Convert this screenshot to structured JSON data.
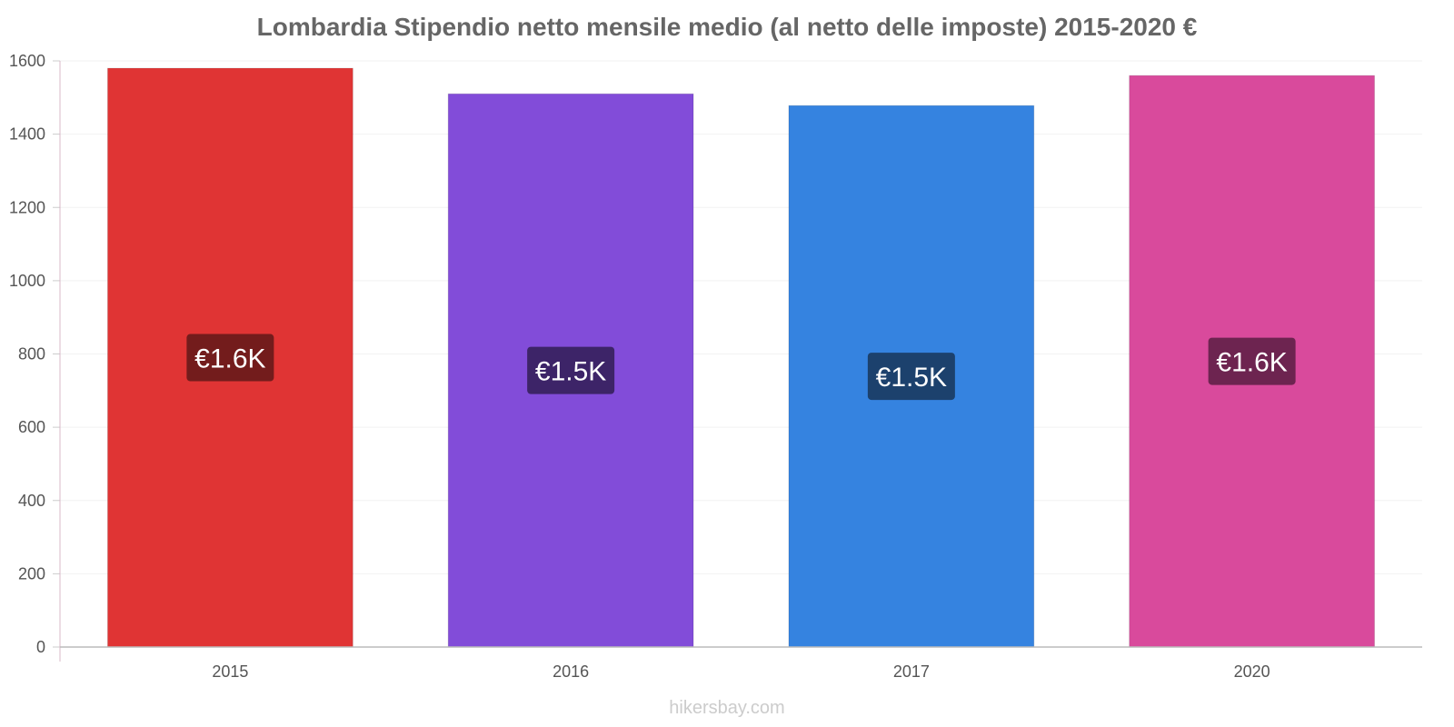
{
  "chart_data": {
    "type": "bar",
    "title": "Lombardia Stipendio netto mensile medio (al netto delle imposte) 2015-2020 €",
    "categories": [
      "2015",
      "2016",
      "2017",
      "2020"
    ],
    "values": [
      1580,
      1510,
      1478,
      1560
    ],
    "data_labels": [
      "€1.6K",
      "€1.5K",
      "€1.5K",
      "€1.6K"
    ],
    "bar_colors": [
      "#e03434",
      "#824cd9",
      "#3583e0",
      "#d94a9c"
    ],
    "label_bg_colors": [
      "#731c1c",
      "#3d2468",
      "#1c416d",
      "#6d2450"
    ],
    "ylim": [
      0,
      1600
    ],
    "yticks": [
      0,
      200,
      400,
      600,
      800,
      1000,
      1200,
      1400,
      1600
    ],
    "grid": true,
    "xlabel": "",
    "ylabel": ""
  },
  "watermark": "hikersbay.com"
}
